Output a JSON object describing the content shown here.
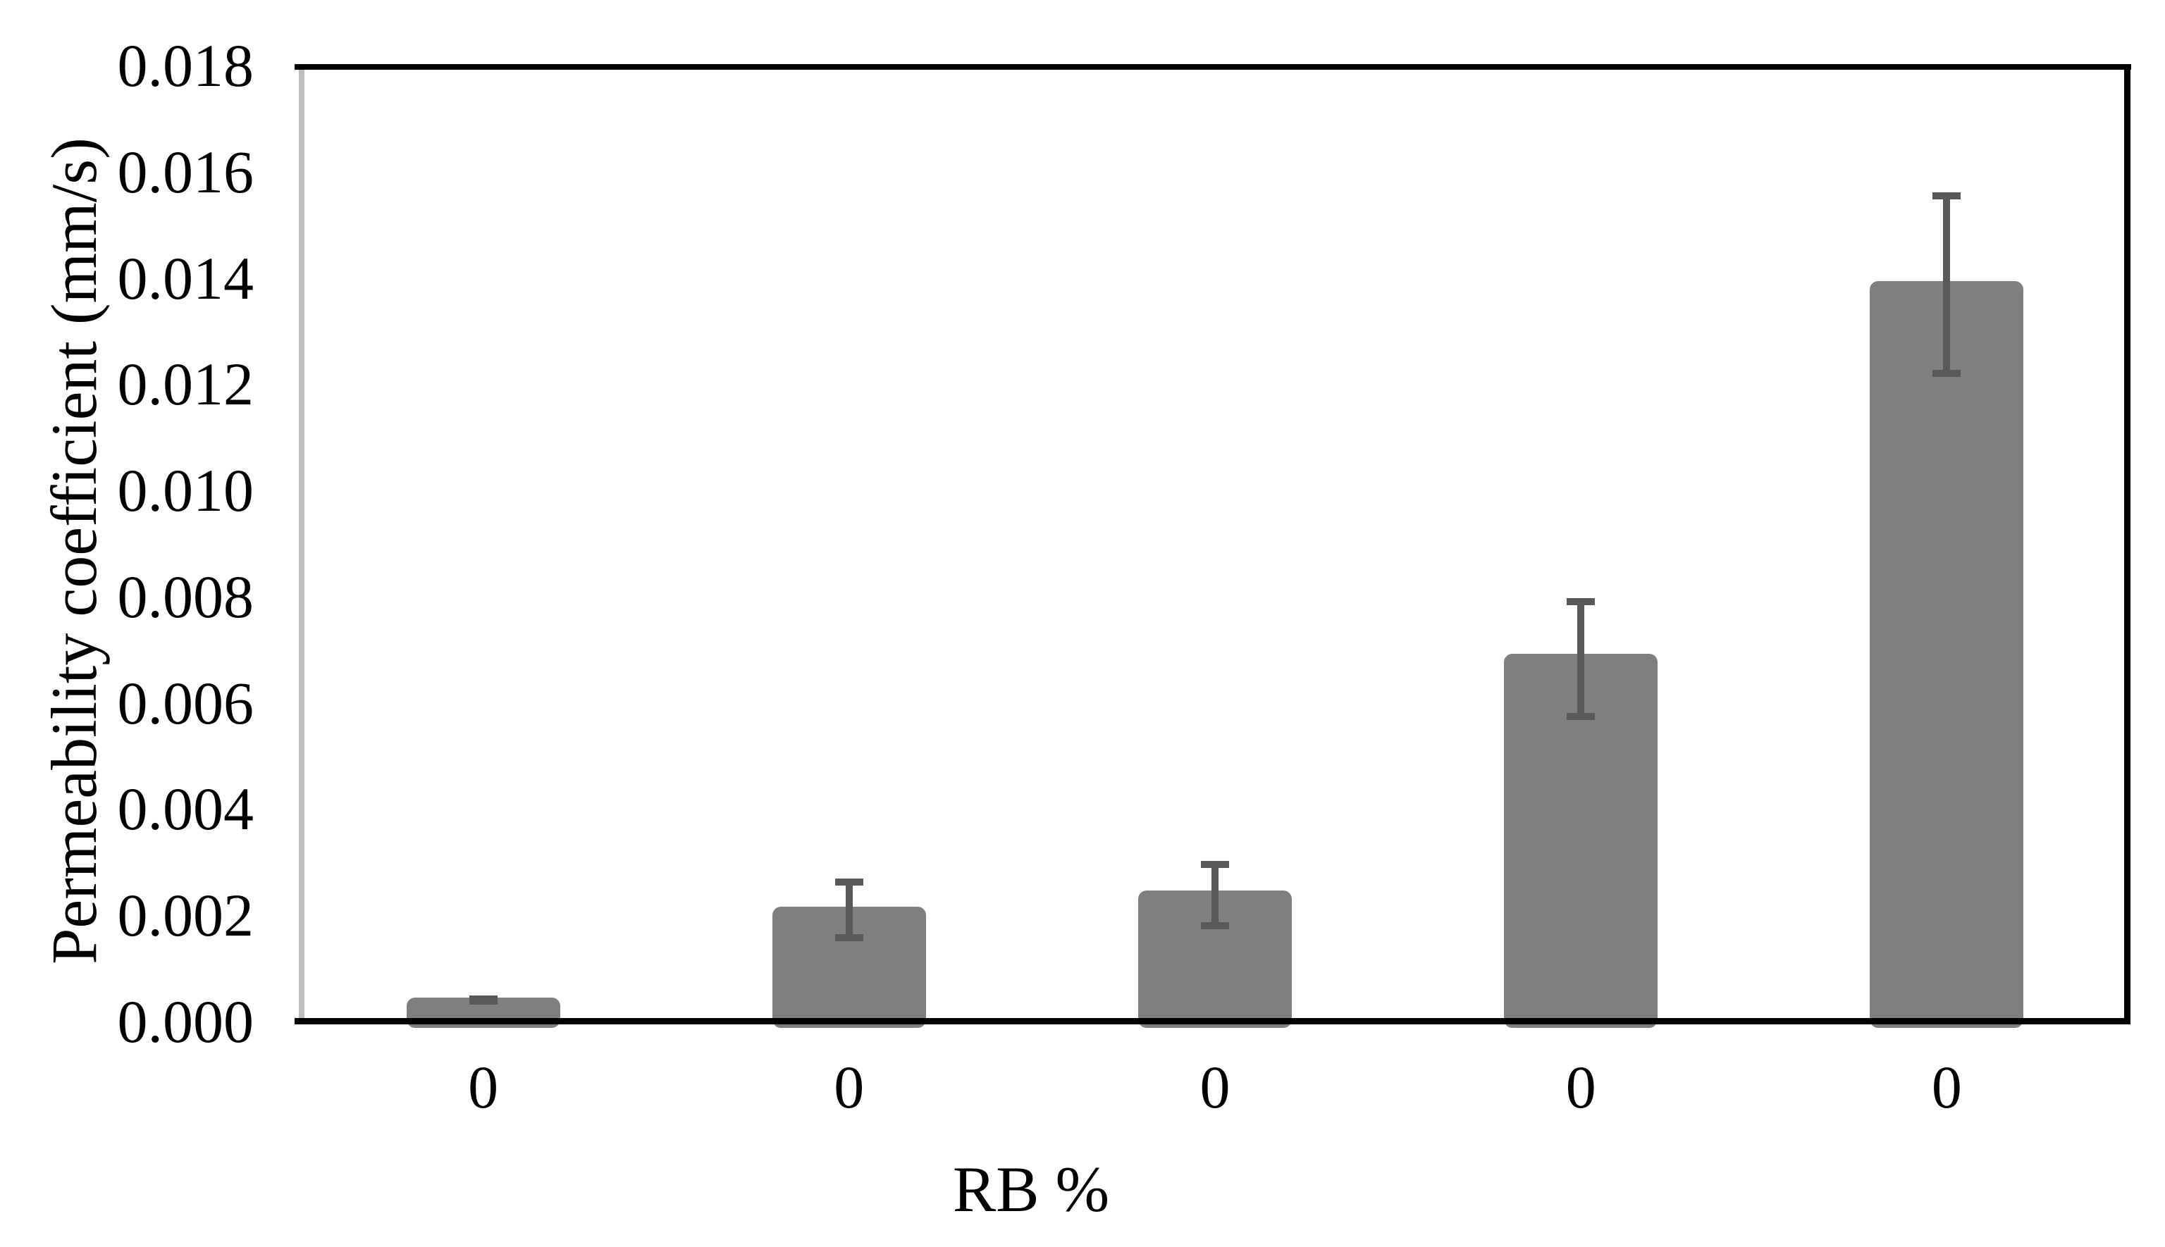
{
  "figure": {
    "background": "#ffffff"
  },
  "chart_data": {
    "type": "bar",
    "title": "",
    "xlabel": "RB %",
    "ylabel": "Permeability coefficient (mm/s)",
    "ylim": [
      0,
      0.018
    ],
    "ytick_step": 0.002,
    "ytick_labels": [
      "0.000",
      "0.002",
      "0.004",
      "0.006",
      "0.008",
      "0.010",
      "0.012",
      "0.014",
      "0.016",
      "0.018"
    ],
    "categories": [
      "0",
      "0",
      "0",
      "0",
      "0"
    ],
    "values": [
      0.00045,
      0.00216,
      0.00247,
      0.00693,
      0.01394
    ],
    "error_low": [
      0.00038,
      0.00158,
      0.00181,
      0.00575,
      0.0122
    ],
    "error_high": [
      0.00042,
      0.00262,
      0.00296,
      0.00791,
      0.01554
    ],
    "grid": false,
    "legend": null,
    "bar_color": "#7f7f7f",
    "error_color": "#595959",
    "left_axis_color": "#bfbfbf",
    "border_color": "#000000"
  }
}
